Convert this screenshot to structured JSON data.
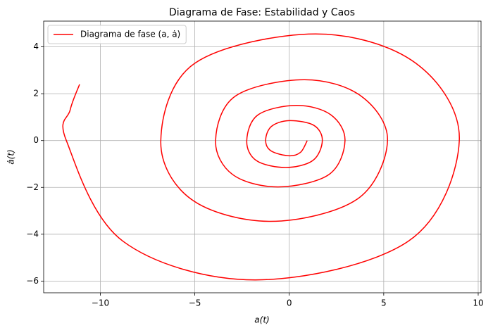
{
  "chart_data": {
    "type": "line",
    "title": "Diagrama de Fase: Estabilidad y Caos",
    "xlabel": "a(t)",
    "ylabel": "ȧ(t)",
    "xlim": [
      -13,
      10.15
    ],
    "ylim": [
      -6.5,
      5.1
    ],
    "xticks": [
      {
        "value": -10,
        "label": "−10"
      },
      {
        "value": -5,
        "label": "−5"
      },
      0,
      5,
      10
    ],
    "yticks": [
      {
        "value": -6,
        "label": "−6"
      },
      {
        "value": -4,
        "label": "−4"
      },
      {
        "value": -2,
        "label": "−2"
      },
      0,
      2,
      4
    ],
    "grid": true,
    "legend": "upper left",
    "series": [
      {
        "name": "Diagrama de fase (a, ȧ)",
        "color": "#ff0000",
        "x": [
          0.95,
          0.6,
          0,
          -0.95,
          -1.25,
          -0.95,
          0,
          1.3,
          1.75,
          1.25,
          -0.2,
          -1.75,
          -2.25,
          -1.65,
          0.4,
          2.2,
          2.95,
          2.1,
          -0.6,
          -3.0,
          -3.9,
          -2.85,
          0.8,
          3.8,
          5.2,
          3.6,
          -1.0,
          -5.2,
          -6.8,
          -5.0,
          1.4,
          6.7,
          9.0,
          6.3,
          -1.8,
          -8.8,
          -11.8,
          -11.6,
          -11.1
        ],
        "values": [
          0,
          -0.5,
          -0.65,
          -0.45,
          0,
          0.6,
          0.85,
          0.65,
          0,
          -0.85,
          -1.15,
          -0.85,
          0,
          1.1,
          1.5,
          1.1,
          0,
          -1.45,
          -1.98,
          -1.45,
          0,
          1.9,
          2.6,
          1.9,
          0,
          -2.5,
          -3.45,
          -2.5,
          0,
          3.3,
          4.55,
          3.3,
          0,
          -4.3,
          -5.95,
          -4.3,
          0,
          1.3,
          2.4
        ]
      }
    ]
  }
}
